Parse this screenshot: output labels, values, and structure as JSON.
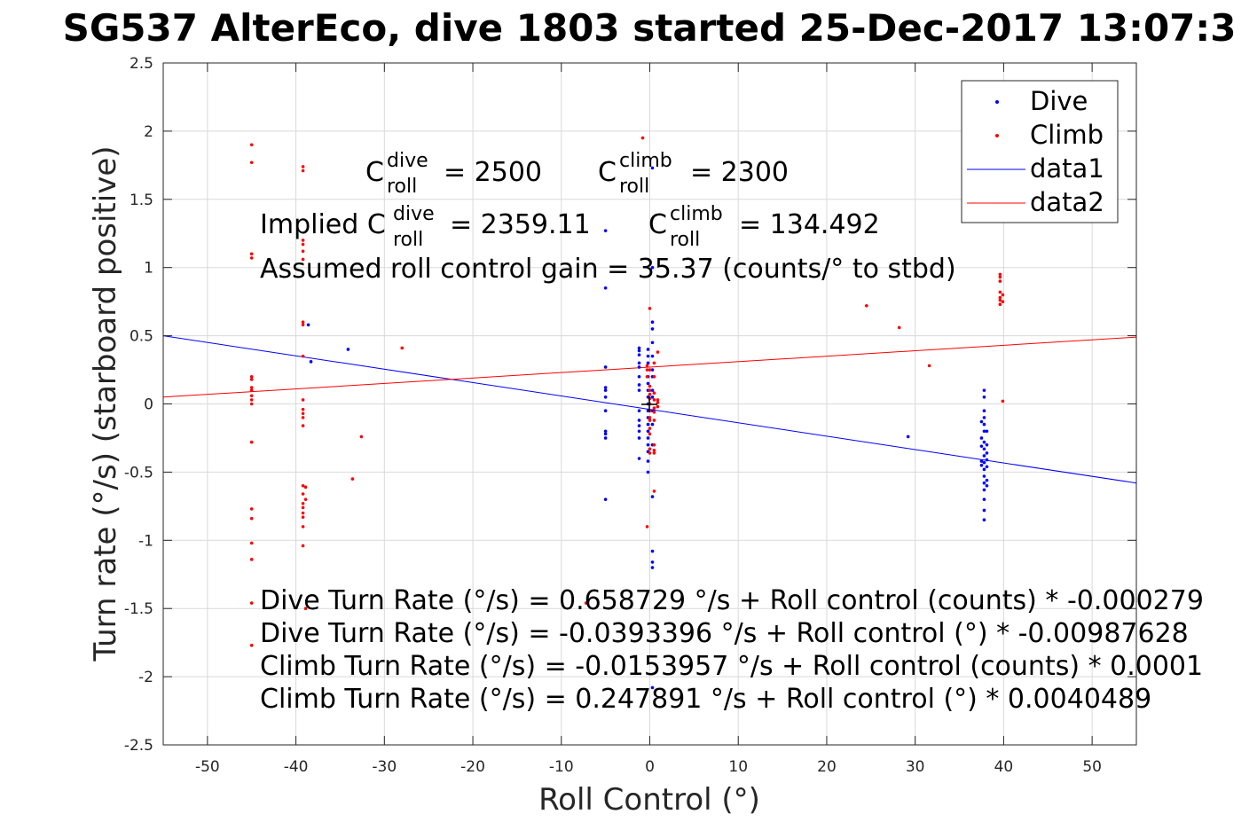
{
  "chart_data": {
    "type": "scatter",
    "title": "SG537 AlterEco, dive 1803 started 25-Dec-2017 13:07:3",
    "xlabel": "Roll Control (°)",
    "ylabel": "Turn rate (°/s) (starboard positive)",
    "xlim": [
      -55,
      55
    ],
    "ylim": [
      -2.5,
      2.5
    ],
    "xticks": [
      -50,
      -40,
      -30,
      -20,
      -10,
      0,
      10,
      20,
      30,
      40,
      50
    ],
    "yticks": [
      -2.5,
      -2,
      -1.5,
      -1,
      -0.5,
      0,
      0.5,
      1,
      1.5,
      2,
      2.5
    ],
    "xtick_labels": [
      "-50",
      "-40",
      "-30",
      "-20",
      "-10",
      "0",
      "10",
      "20",
      "30",
      "40",
      "50"
    ],
    "ytick_labels": [
      "-2.5",
      "-2",
      "-1.5",
      "-1",
      "-0.5",
      "0",
      "0.5",
      "1",
      "1.5",
      "2",
      "2.5"
    ],
    "grid": true,
    "legend_position": "top-right",
    "legend": [
      "Dive",
      "Climb",
      "data1",
      "data2"
    ],
    "colors": {
      "dive": "#0000ff",
      "climb": "#ff0000",
      "data1": "#0000ff",
      "data2": "#ff0000",
      "grid": "#d9d9d9"
    },
    "series": [
      {
        "name": "Dive",
        "marker": "point",
        "points": [
          [
            -5,
            0.85
          ],
          [
            -5,
            0.27
          ],
          [
            -5,
            0.12
          ],
          [
            -5,
            0.1
          ],
          [
            -5,
            0.05
          ],
          [
            -5,
            -0.05
          ],
          [
            -5,
            -0.2
          ],
          [
            -5,
            -0.22
          ],
          [
            -5,
            -0.25
          ],
          [
            -5,
            -0.7
          ],
          [
            -5,
            1.27
          ],
          [
            -1.2,
            0.41
          ],
          [
            -1.2,
            0.39
          ],
          [
            -1.2,
            0.36
          ],
          [
            -1.2,
            0.3
          ],
          [
            -1.2,
            0.27
          ],
          [
            -1.2,
            0.2
          ],
          [
            -1.2,
            0.14
          ],
          [
            -1.2,
            0.1
          ],
          [
            -1.2,
            -0.05
          ],
          [
            -1.2,
            -0.12
          ],
          [
            -1.2,
            -0.16
          ],
          [
            -1.2,
            -0.2
          ],
          [
            -1.2,
            -0.25
          ],
          [
            -1.2,
            -0.4
          ],
          [
            -0.2,
            0.4
          ],
          [
            -0.2,
            0.35
          ],
          [
            -0.2,
            0.3
          ],
          [
            -0.2,
            0.2
          ],
          [
            -0.2,
            0.15
          ],
          [
            -0.2,
            0.1
          ],
          [
            -0.2,
            0.05
          ],
          [
            -0.2,
            0
          ],
          [
            -0.2,
            -0.05
          ],
          [
            -0.2,
            -0.1
          ],
          [
            -0.2,
            -0.15
          ],
          [
            -0.2,
            -0.2
          ],
          [
            -0.2,
            -0.25
          ],
          [
            -0.2,
            -0.3
          ],
          [
            -0.2,
            -0.35
          ],
          [
            -0.2,
            -0.42
          ],
          [
            -0.2,
            -0.5
          ],
          [
            0.3,
            0.6
          ],
          [
            0.3,
            0.55
          ],
          [
            0.3,
            0.45
          ],
          [
            0.3,
            0.35
          ],
          [
            0.3,
            0.25
          ],
          [
            0.3,
            0.2
          ],
          [
            0.3,
            0.1
          ],
          [
            0.3,
            0.05
          ],
          [
            0.3,
            -0.05
          ],
          [
            0.3,
            -0.15
          ],
          [
            0.3,
            -0.3
          ],
          [
            0.3,
            -0.68
          ],
          [
            0.3,
            -1.08
          ],
          [
            0.3,
            -1.16
          ],
          [
            0.3,
            -1.2
          ],
          [
            0.3,
            1.73
          ],
          [
            0.3,
            1.0
          ],
          [
            0.3,
            -2.08
          ],
          [
            -38.6,
            0.58
          ],
          [
            -38.3,
            0.31
          ],
          [
            -34.1,
            0.4
          ],
          [
            29.2,
            -0.24
          ],
          [
            37.5,
            -0.13
          ],
          [
            37.5,
            -0.25
          ],
          [
            37.5,
            -0.31
          ],
          [
            37.5,
            -0.42
          ],
          [
            37.5,
            -0.45
          ],
          [
            37.8,
            0.1
          ],
          [
            37.8,
            0.05
          ],
          [
            37.8,
            -0.05
          ],
          [
            37.8,
            -0.1
          ],
          [
            37.8,
            -0.15
          ],
          [
            37.8,
            -0.2
          ],
          [
            37.8,
            -0.28
          ],
          [
            37.8,
            -0.33
          ],
          [
            37.8,
            -0.38
          ],
          [
            37.8,
            -0.43
          ],
          [
            37.8,
            -0.48
          ],
          [
            37.8,
            -0.53
          ],
          [
            37.8,
            -0.58
          ],
          [
            37.8,
            -0.63
          ],
          [
            37.8,
            -0.7
          ],
          [
            37.8,
            -0.78
          ],
          [
            37.8,
            -0.85
          ],
          [
            38.1,
            -0.2
          ],
          [
            38.1,
            -0.3
          ],
          [
            38.1,
            -0.36
          ],
          [
            38.1,
            -0.41
          ],
          [
            38.1,
            -0.46
          ],
          [
            38.1,
            -0.56
          ],
          [
            38.1,
            -0.6
          ]
        ]
      },
      {
        "name": "Climb",
        "marker": "point",
        "points": [
          [
            -45,
            1.9
          ],
          [
            -45,
            1.77
          ],
          [
            -45,
            1.1
          ],
          [
            -45,
            1.07
          ],
          [
            -45,
            0.2
          ],
          [
            -45,
            0.18
          ],
          [
            -45,
            0.12
          ],
          [
            -45,
            0.1
          ],
          [
            -45,
            0.06
          ],
          [
            -45,
            0.03
          ],
          [
            -45,
            0
          ],
          [
            -45,
            -0.28
          ],
          [
            -45,
            -0.77
          ],
          [
            -45,
            -0.84
          ],
          [
            -45,
            -1.02
          ],
          [
            -45,
            -1.14
          ],
          [
            -45,
            -1.46
          ],
          [
            -45,
            -1.77
          ],
          [
            -39.2,
            1.74
          ],
          [
            -39.2,
            1.71
          ],
          [
            -39.2,
            1.2
          ],
          [
            -39.2,
            1.17
          ],
          [
            -39.2,
            1.12
          ],
          [
            -39.2,
            1.06
          ],
          [
            -39.2,
            0.6
          ],
          [
            -39.2,
            0.58
          ],
          [
            -39.2,
            0.35
          ],
          [
            -39.2,
            0.03
          ],
          [
            -39.2,
            -0.04
          ],
          [
            -39.2,
            -0.07
          ],
          [
            -39.2,
            -0.1
          ],
          [
            -39.2,
            -0.16
          ],
          [
            -39.2,
            -0.6
          ],
          [
            -39.2,
            -0.66
          ],
          [
            -39.2,
            -0.73
          ],
          [
            -39.2,
            -0.76
          ],
          [
            -39.2,
            -0.8
          ],
          [
            -39.2,
            -0.83
          ],
          [
            -39.2,
            -0.9
          ],
          [
            -39.2,
            -1.04
          ],
          [
            -38.9,
            -0.61
          ],
          [
            -38.9,
            -0.7
          ],
          [
            -38.9,
            -1.5
          ],
          [
            -32.6,
            -0.24
          ],
          [
            -33.6,
            -0.55
          ],
          [
            -28,
            0.41
          ],
          [
            -7.2,
            -1.46
          ],
          [
            -0.8,
            1.95
          ],
          [
            -0.3,
            0.28
          ],
          [
            -0.3,
            0.25
          ],
          [
            -0.3,
            0.2
          ],
          [
            -0.3,
            -0.9
          ],
          [
            0,
            0.7
          ],
          [
            0,
            0.25
          ],
          [
            0,
            0.13
          ],
          [
            0,
            0.1
          ],
          [
            0,
            0.07
          ],
          [
            0,
            0.04
          ],
          [
            0,
            0
          ],
          [
            0,
            -0.05
          ],
          [
            0,
            -0.1
          ],
          [
            0,
            -0.12
          ],
          [
            0,
            -0.18
          ],
          [
            0,
            -0.22
          ],
          [
            0,
            -0.33
          ],
          [
            0,
            -0.36
          ],
          [
            0.5,
            0.3
          ],
          [
            0.5,
            0.2
          ],
          [
            0.5,
            0.08
          ],
          [
            0.5,
            0.03
          ],
          [
            0.5,
            -0.03
          ],
          [
            0.5,
            -0.06
          ],
          [
            0.5,
            -0.12
          ],
          [
            0.5,
            -0.3
          ],
          [
            0.5,
            -0.34
          ],
          [
            0.5,
            -0.36
          ],
          [
            0.5,
            -0.64
          ],
          [
            0.9,
            0.38
          ],
          [
            0.9,
            0.01
          ],
          [
            0.9,
            -0.02
          ],
          [
            0.9,
            0.03
          ],
          [
            24.5,
            0.72
          ],
          [
            28.2,
            0.56
          ],
          [
            31.6,
            0.28
          ],
          [
            39.6,
            0.95
          ],
          [
            39.6,
            0.93
          ],
          [
            39.6,
            0.9
          ],
          [
            39.6,
            0.82
          ],
          [
            39.6,
            0.78
          ],
          [
            39.6,
            0.76
          ],
          [
            39.6,
            0.73
          ],
          [
            39.9,
            0.8
          ],
          [
            39.9,
            0.75
          ],
          [
            39.9,
            0.02
          ]
        ]
      },
      {
        "name": "data1",
        "type": "line",
        "points": [
          [
            -55,
            0.5
          ],
          [
            55,
            -0.58
          ]
        ]
      },
      {
        "name": "data2",
        "type": "line",
        "points": [
          [
            -55,
            0.05
          ],
          [
            55,
            0.49
          ]
        ]
      }
    ],
    "annotations": {
      "cdive": {
        "base": "C",
        "sup": "dive",
        "sub": "roll",
        "value": "= 2500"
      },
      "cclimb": {
        "base": "C",
        "sup": "climb",
        "sub": "roll",
        "value": "= 2300"
      },
      "implied_dive": {
        "prefix": "Implied C",
        "sup": "dive",
        "sub": "roll",
        "value": "= 2359.11"
      },
      "implied_climb": {
        "base": "C",
        "sup": "climb",
        "sub": "roll",
        "value": "= 134.492"
      },
      "gain": "Assumed roll control gain = 35.37 (counts/° to stbd)",
      "fit_lines": [
        "Dive Turn Rate (°/s) = 0.658729 °/s + Roll control (counts) * -0.000279",
        "Dive Turn Rate (°/s) = -0.0393396 °/s + Roll control (°) * -0.00987628",
        "Climb Turn Rate (°/s) = -0.0153957 °/s + Roll control (counts) * 0.0001",
        "Climb Turn Rate (°/s) = 0.247891 °/s + Roll control (°) * 0.0040489"
      ]
    }
  }
}
